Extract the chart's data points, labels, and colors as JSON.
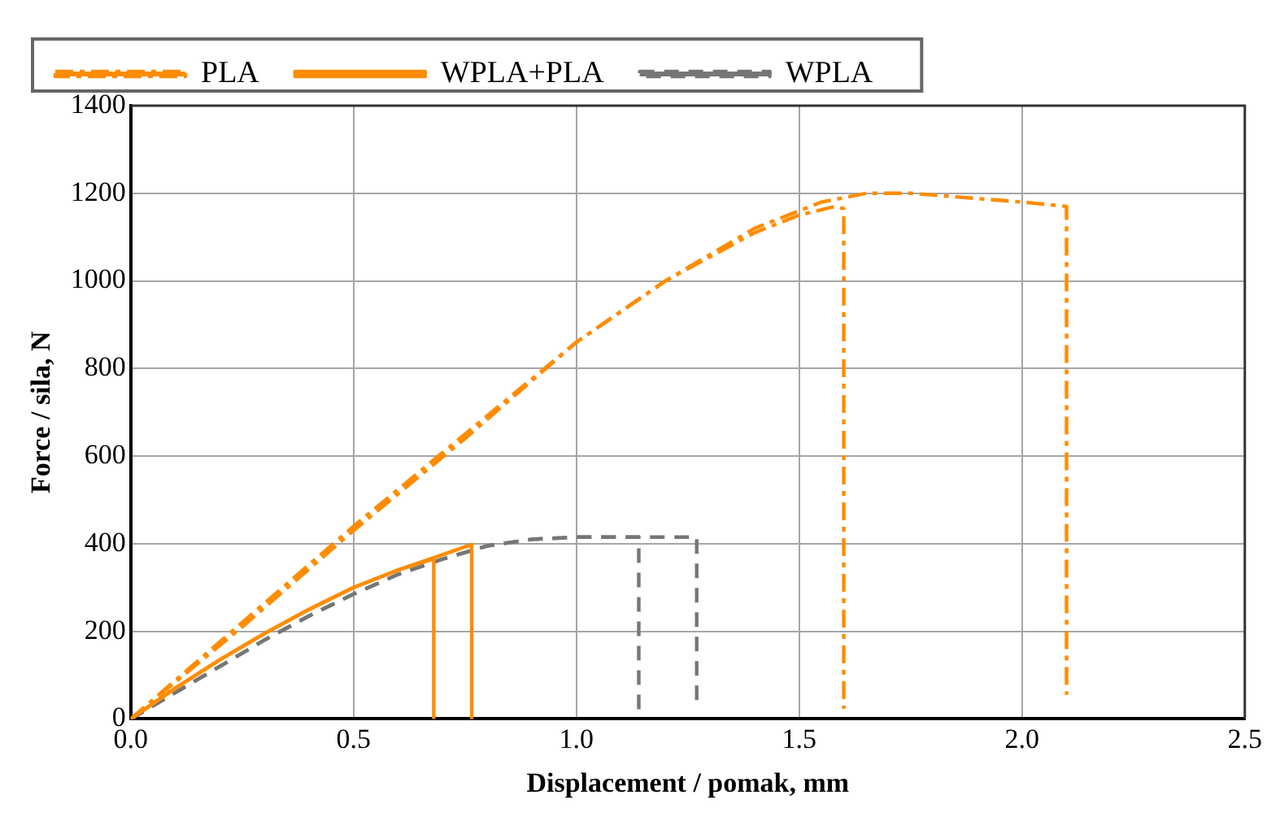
{
  "chart_data": {
    "type": "line",
    "xlabel": "Displacement / pomak, mm",
    "ylabel": "Force / sila, N",
    "xlim": [
      0,
      2.5
    ],
    "xticks": [
      {
        "value": 0,
        "label": "0.0"
      },
      0.5,
      {
        "value": 1,
        "label": "1.0"
      },
      1.5,
      {
        "value": 2,
        "label": "2.0"
      },
      2.5
    ],
    "ylim": [
      0,
      1400
    ],
    "yticks": [
      0,
      200,
      400,
      600,
      800,
      1000,
      1200,
      1400
    ],
    "grid": true,
    "legend": "top left",
    "marker": "none",
    "series": [
      {
        "name": "PLA",
        "color": "#ff8c00",
        "line_style": "dashdot",
        "x": [
          0,
          0.25,
          0.5,
          0.75,
          1.0,
          1.2,
          1.4,
          1.5,
          1.58,
          1.6,
          1.6
        ],
        "values": [
          0,
          220,
          440,
          650,
          860,
          1000,
          1110,
          1150,
          1170,
          1165,
          23
        ]
      },
      {
        "name": null,
        "color": "#ff8c00",
        "line_style": "dashdot",
        "x": [
          0,
          0.25,
          0.5,
          0.75,
          1.0,
          1.2,
          1.4,
          1.55,
          1.65,
          1.75,
          2.0,
          2.1,
          2.1
        ],
        "values": [
          0,
          210,
          430,
          640,
          860,
          1000,
          1120,
          1180,
          1200,
          1200,
          1180,
          1170,
          55
        ]
      },
      {
        "name": "WPLA+PLA",
        "color": "#ff8c00",
        "line_style": "solid",
        "x": [
          0,
          0.1,
          0.2,
          0.3,
          0.4,
          0.5,
          0.6,
          0.68,
          0.68
        ],
        "values": [
          0,
          70,
          135,
          195,
          250,
          300,
          340,
          365,
          0
        ]
      },
      {
        "name": null,
        "color": "#ff8c00",
        "line_style": "solid",
        "x": [
          0,
          0.1,
          0.2,
          0.3,
          0.4,
          0.5,
          0.6,
          0.7,
          0.765,
          0.765
        ],
        "values": [
          0,
          70,
          135,
          195,
          250,
          300,
          340,
          375,
          398,
          0
        ]
      },
      {
        "name": "WPLA",
        "color": "#767676",
        "line_style": "dashed",
        "x": [
          0,
          0.1,
          0.2,
          0.3,
          0.4,
          0.5,
          0.6,
          0.7,
          0.8,
          0.9,
          1.0,
          1.14,
          1.14
        ],
        "values": [
          0,
          60,
          120,
          180,
          235,
          285,
          330,
          365,
          395,
          410,
          415,
          415,
          0
        ]
      },
      {
        "name": null,
        "color": "#767676",
        "line_style": "dashed",
        "x": [
          0,
          0.1,
          0.2,
          0.3,
          0.4,
          0.5,
          0.6,
          0.7,
          0.8,
          0.9,
          1.0,
          1.27,
          1.27
        ],
        "values": [
          0,
          60,
          120,
          180,
          235,
          285,
          330,
          365,
          395,
          410,
          415,
          415,
          35
        ]
      }
    ]
  }
}
